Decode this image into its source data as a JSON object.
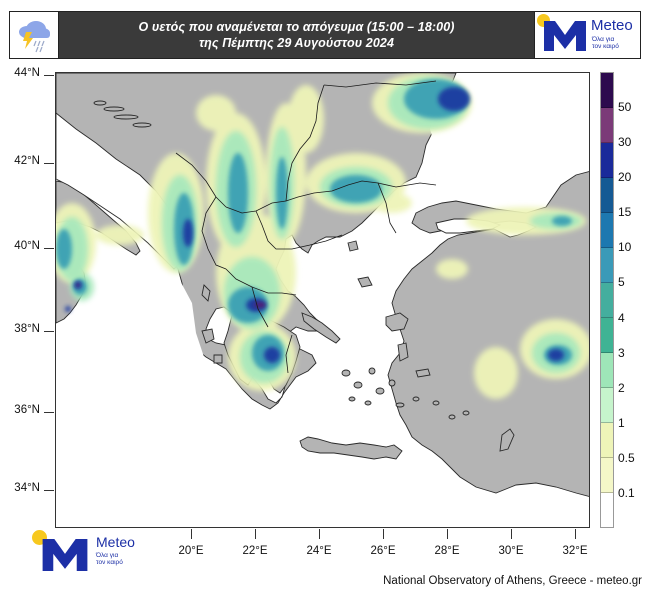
{
  "header": {
    "title_line1": "Ο υετός που αναμένεται το απόγευμα (15:00 – 18:00)",
    "title_line2": "της Πέμπτης 29 Αυγούστου 2024",
    "left_icon": "thunderstorm-rain-icon",
    "logo": {
      "brand": "Meteo",
      "tagline_line1": "Όλα για",
      "tagline_line2": "τον καιρό"
    }
  },
  "map": {
    "land_color": "#b4b4b4",
    "sea_color": "#ffffff",
    "border_color": "#1a1a1a",
    "lat_labels": [
      "44°N",
      "42°N",
      "40°N",
      "38°N",
      "36°N",
      "34°N"
    ],
    "lon_labels": [
      "20°E",
      "22°E",
      "24°E",
      "26°E",
      "28°E",
      "30°E",
      "32°E"
    ]
  },
  "colorbar": {
    "unit_hint": "mm",
    "levels": [
      "50",
      "30",
      "20",
      "15",
      "10",
      "5",
      "4",
      "3",
      "2",
      "1",
      "0.5",
      "0.1"
    ],
    "colors": [
      "#2d0a4e",
      "#7b3a78",
      "#1a2a9a",
      "#155a94",
      "#1d78b0",
      "#3a9ab8",
      "#44ae9e",
      "#3fb394",
      "#9ee6b8",
      "#c6f4cc",
      "#eef4b8",
      "#f4f7c8",
      "#ffffff"
    ]
  },
  "footer": {
    "logo": {
      "brand": "Meteo",
      "tagline_line1": "Όλα για",
      "tagline_line2": "τον καιρό"
    },
    "credit": "National Observatory of Athens, Greece - meteo.gr"
  }
}
